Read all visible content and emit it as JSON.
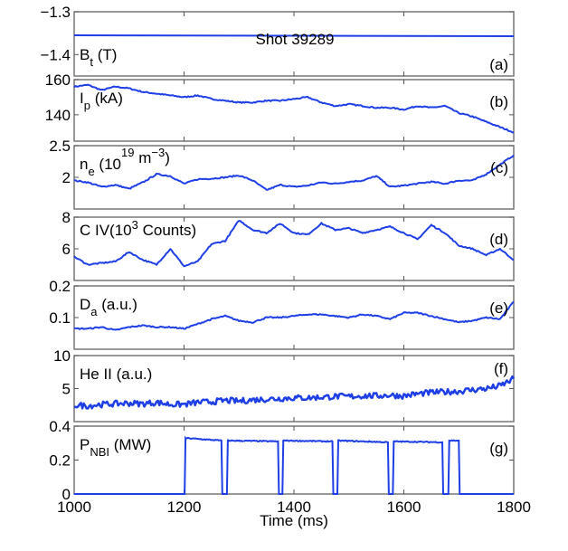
{
  "chart_data": [
    {
      "type": "line",
      "id": "a",
      "panel_letter": "(a)",
      "label": {
        "main": "B",
        "sub": "t",
        "rest": " (T)"
      },
      "annotation": "Shot 39289",
      "ylim": [
        -1.45,
        -1.3
      ],
      "yticks": [
        -1.3,
        -1.4
      ],
      "ytick_labels": [
        "−1.3",
        "−1.4"
      ],
      "x": [
        1000,
        1800
      ],
      "y": [
        -1.355,
        -1.357
      ]
    },
    {
      "type": "line",
      "id": "b",
      "panel_letter": "(b)",
      "label": {
        "main": "I",
        "sub": "p",
        "rest": " (kA)"
      },
      "ylim": [
        125,
        160
      ],
      "yticks": [
        160,
        140
      ],
      "ytick_labels": [
        "160",
        "140"
      ],
      "y": [
        156,
        157,
        154,
        156,
        155,
        153,
        152,
        151,
        150,
        151,
        149,
        148,
        147,
        147,
        148,
        148,
        149,
        150,
        147,
        145,
        146,
        145,
        144,
        144,
        143,
        145,
        144,
        145,
        141,
        139,
        136,
        133,
        130
      ]
    },
    {
      "type": "line",
      "id": "c",
      "panel_letter": "(c)",
      "label": {
        "main": "n",
        "sub": "e",
        "rest": " (10",
        "sup": "19",
        "rest2": " m",
        "sup2": "−3",
        "rest3": ")"
      },
      "ylim": [
        1.5,
        2.5
      ],
      "yticks": [
        2.5,
        2
      ],
      "ytick_labels": [
        "2.5",
        "2"
      ],
      "y": [
        1.95,
        1.92,
        1.85,
        1.88,
        1.82,
        1.92,
        2.05,
        2.02,
        1.9,
        1.97,
        1.98,
        2.0,
        2.03,
        1.95,
        1.8,
        1.88,
        1.85,
        1.87,
        1.92,
        1.9,
        1.93,
        1.95,
        2.02,
        1.85,
        1.87,
        1.9,
        1.93,
        1.9,
        1.95,
        1.95,
        2.05,
        2.2,
        2.35
      ]
    },
    {
      "type": "line",
      "id": "d",
      "panel_letter": "(d)",
      "label": {
        "main": "C IV(10",
        "sup": "3",
        "rest": " Counts)"
      },
      "ylim": [
        4,
        8
      ],
      "yticks": [
        8,
        6
      ],
      "ytick_labels": [
        "8",
        "6"
      ],
      "y": [
        5.5,
        5.0,
        5.1,
        5.2,
        5.8,
        5.3,
        5.0,
        6.0,
        4.9,
        5.2,
        6.3,
        6.5,
        7.8,
        7.2,
        7.0,
        7.6,
        7.0,
        6.9,
        7.6,
        7.2,
        7.3,
        7.0,
        7.2,
        7.4,
        7.0,
        6.6,
        7.5,
        7.0,
        6.2,
        6.0,
        5.6,
        6.0,
        5.3
      ]
    },
    {
      "type": "line",
      "id": "e",
      "panel_letter": "(e)",
      "label": {
        "main": "D",
        "sub": "a",
        "rest": "  (a.u.)"
      },
      "ylim": [
        0,
        0.2
      ],
      "yticks": [
        0.2,
        0.1
      ],
      "ytick_labels": [
        "0.2",
        "0.1"
      ],
      "y": [
        0.065,
        0.065,
        0.07,
        0.06,
        0.07,
        0.075,
        0.07,
        0.07,
        0.065,
        0.08,
        0.095,
        0.105,
        0.09,
        0.085,
        0.1,
        0.1,
        0.105,
        0.11,
        0.11,
        0.105,
        0.1,
        0.11,
        0.105,
        0.095,
        0.115,
        0.115,
        0.105,
        0.095,
        0.085,
        0.09,
        0.1,
        0.095,
        0.15
      ]
    },
    {
      "type": "line",
      "id": "f",
      "panel_letter": "(f)",
      "label": {
        "main": "He II (a.u.)"
      },
      "ylim": [
        0,
        10
      ],
      "yticks": [
        10,
        5
      ],
      "ytick_labels": [
        "10",
        "5"
      ],
      "y": [
        2.5,
        2.4,
        2.6,
        2.7,
        2.8,
        2.7,
        2.9,
        2.6,
        2.6,
        2.9,
        3.0,
        3.2,
        3.1,
        3.3,
        3.4,
        3.5,
        3.6,
        3.6,
        3.7,
        3.8,
        3.8,
        3.9,
        3.9,
        4.0,
        3.9,
        4.2,
        4.4,
        4.5,
        4.6,
        4.8,
        5.0,
        5.4,
        6.5
      ]
    },
    {
      "type": "line",
      "id": "g",
      "panel_letter": "(g)",
      "label": {
        "main": "P",
        "sub": "NBI",
        "rest": "   (MW)"
      },
      "ylim": [
        0,
        0.4
      ],
      "yticks": [
        0.4,
        0.2,
        0
      ],
      "ytick_labels": [
        "0.4",
        "0.2",
        "0"
      ],
      "pulses": [
        [
          1201,
          1268,
          0.33,
          0.315
        ],
        [
          1278,
          1371,
          0.315,
          0.31
        ],
        [
          1379,
          1470,
          0.315,
          0.31
        ],
        [
          1479,
          1571,
          0.315,
          0.305
        ],
        [
          1580,
          1670,
          0.31,
          0.305
        ],
        [
          1681,
          1700,
          0.315,
          0.315
        ]
      ]
    }
  ],
  "x_common": {
    "start": 1000,
    "step": 25,
    "xlim": [
      1000,
      1800
    ],
    "xticks": [
      1000,
      1200,
      1400,
      1600,
      1800
    ],
    "xtick_labels": [
      "1000",
      "1200",
      "1400",
      "1600",
      "1800"
    ],
    "xlabel": "Time (ms)"
  },
  "line_color": "#1f3fe6"
}
